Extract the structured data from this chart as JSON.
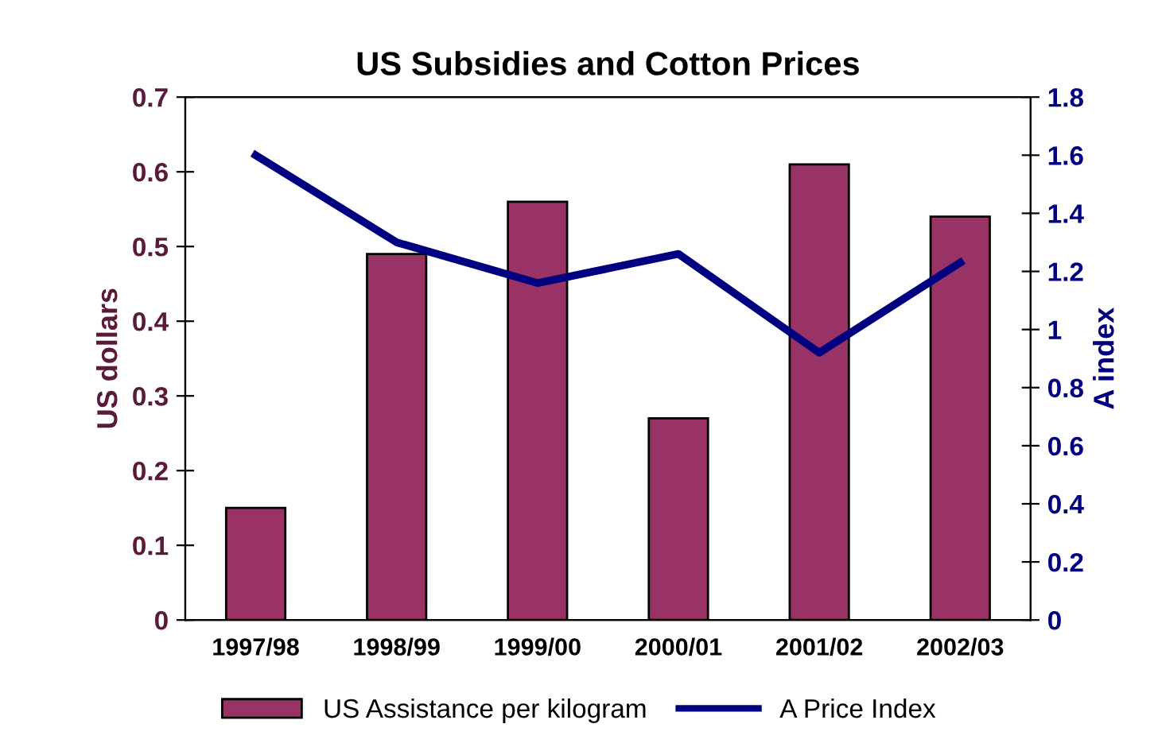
{
  "chart_data": {
    "type": "bar",
    "title": "US Subsidies and Cotton Prices",
    "ylabel": "US dollars",
    "y2label": "A index",
    "categories": [
      "1997/98",
      "1998/99",
      "1999/00",
      "2000/01",
      "2001/02",
      "2002/03"
    ],
    "series": [
      {
        "name": "US Assistance per kilogram",
        "color": "#993366",
        "values": [
          0.15,
          0.49,
          0.56,
          0.27,
          0.61,
          0.54
        ]
      },
      {
        "name": "A Price Index",
        "type": "line",
        "axis": "y2",
        "color": "#000080",
        "values": [
          1.6,
          1.3,
          1.16,
          1.26,
          0.92,
          1.23
        ]
      }
    ],
    "ylim": [
      0,
      0.7
    ],
    "yticks": [
      0,
      0.1,
      0.2,
      0.3,
      0.4,
      0.5,
      0.6,
      0.7
    ],
    "y2lim": [
      0,
      1.8
    ],
    "y2ticks": [
      0,
      0.2,
      0.4,
      0.6,
      0.8,
      1,
      1.2,
      1.4,
      1.6,
      1.8
    ],
    "legend": "bottom",
    "grid": false,
    "marker": "none",
    "line_style": "solid"
  }
}
